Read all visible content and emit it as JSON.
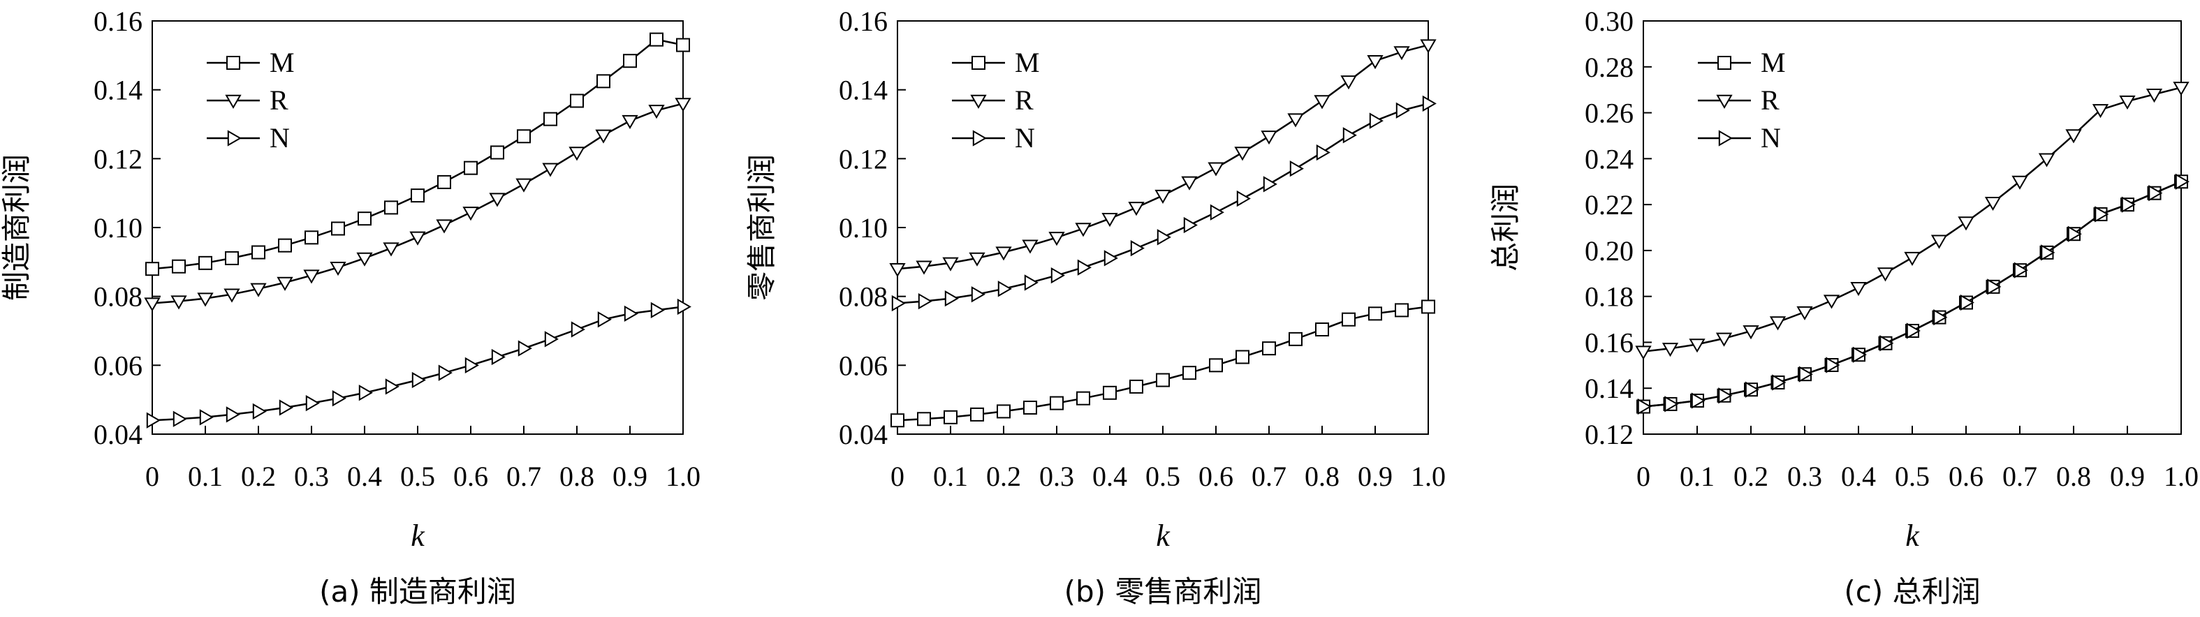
{
  "chart_data": [
    {
      "type": "line",
      "panel_caption": "(a) 制造商利润",
      "xlabel": "k",
      "ylabel": "制造商利润",
      "xlim": [
        0,
        1.0
      ],
      "ylim": [
        0.04,
        0.16
      ],
      "xticks": [
        "0",
        "0.1",
        "0.2",
        "0.3",
        "0.4",
        "0.5",
        "0.6",
        "0.7",
        "0.8",
        "0.9",
        "1.0"
      ],
      "yticks": [
        "0.04",
        "0.06",
        "0.08",
        "0.10",
        "0.12",
        "0.14",
        "0.16"
      ],
      "legend_position": "top-left",
      "x": [
        0,
        0.05,
        0.1,
        0.15,
        0.2,
        0.25,
        0.3,
        0.35,
        0.4,
        0.45,
        0.5,
        0.55,
        0.6,
        0.65,
        0.7,
        0.75,
        0.8,
        0.85,
        0.9,
        0.95,
        1.0
      ],
      "series": [
        {
          "name": "M",
          "marker": "square",
          "values": [
            0.088,
            0.0887,
            0.0897,
            0.0911,
            0.0928,
            0.0948,
            0.0971,
            0.0997,
            0.1026,
            0.1058,
            0.1093,
            0.1132,
            0.1173,
            0.1218,
            0.1265,
            0.1315,
            0.1368,
            0.1425,
            0.1484,
            0.1546,
            0.153
          ]
        },
        {
          "name": "R",
          "marker": "triangle-down",
          "values": [
            0.078,
            0.0786,
            0.0794,
            0.0806,
            0.0822,
            0.084,
            0.0861,
            0.0884,
            0.0911,
            0.094,
            0.0972,
            0.1007,
            0.1044,
            0.1084,
            0.1126,
            0.1171,
            0.1218,
            0.1268,
            0.131,
            0.134,
            0.136
          ]
        },
        {
          "name": "N",
          "marker": "triangle-right",
          "values": [
            0.044,
            0.0444,
            0.0449,
            0.0457,
            0.0466,
            0.0477,
            0.049,
            0.0504,
            0.052,
            0.0538,
            0.0557,
            0.0578,
            0.06,
            0.0624,
            0.0649,
            0.0676,
            0.0704,
            0.0733,
            0.075,
            0.076,
            0.077
          ]
        }
      ]
    },
    {
      "type": "line",
      "panel_caption": "(b) 零售商利润",
      "xlabel": "k",
      "ylabel": "零售商利润",
      "xlim": [
        0,
        1.0
      ],
      "ylim": [
        0.04,
        0.16
      ],
      "xticks": [
        "0",
        "0.1",
        "0.2",
        "0.3",
        "0.4",
        "0.5",
        "0.6",
        "0.7",
        "0.8",
        "0.9",
        "1.0"
      ],
      "yticks": [
        "0.04",
        "0.06",
        "0.08",
        "0.10",
        "0.12",
        "0.14",
        "0.16"
      ],
      "legend_position": "top-left",
      "x": [
        0,
        0.05,
        0.1,
        0.15,
        0.2,
        0.25,
        0.3,
        0.35,
        0.4,
        0.45,
        0.5,
        0.55,
        0.6,
        0.65,
        0.7,
        0.75,
        0.8,
        0.85,
        0.9,
        0.95,
        1.0
      ],
      "series": [
        {
          "name": "M",
          "marker": "square",
          "values": [
            0.044,
            0.0444,
            0.0449,
            0.0457,
            0.0466,
            0.0477,
            0.049,
            0.0504,
            0.052,
            0.0538,
            0.0557,
            0.0578,
            0.06,
            0.0624,
            0.0649,
            0.0676,
            0.0704,
            0.0733,
            0.075,
            0.076,
            0.077
          ]
        },
        {
          "name": "R",
          "marker": "triangle-down",
          "values": [
            0.088,
            0.0887,
            0.0897,
            0.0911,
            0.0928,
            0.0948,
            0.0971,
            0.0997,
            0.1026,
            0.1058,
            0.1093,
            0.1132,
            0.1173,
            0.1218,
            0.1265,
            0.1315,
            0.1368,
            0.1425,
            0.1484,
            0.151,
            0.153
          ]
        },
        {
          "name": "N",
          "marker": "triangle-right",
          "values": [
            0.078,
            0.0786,
            0.0794,
            0.0806,
            0.0822,
            0.084,
            0.0861,
            0.0884,
            0.0911,
            0.094,
            0.0972,
            0.1007,
            0.1044,
            0.1084,
            0.1126,
            0.1171,
            0.1218,
            0.1268,
            0.131,
            0.134,
            0.136
          ]
        }
      ]
    },
    {
      "type": "line",
      "panel_caption": "(c) 总利润",
      "xlabel": "k",
      "ylabel": "总利润",
      "xlim": [
        0,
        1.0
      ],
      "ylim": [
        0.12,
        0.3
      ],
      "xticks": [
        "0",
        "0.1",
        "0.2",
        "0.3",
        "0.4",
        "0.5",
        "0.6",
        "0.7",
        "0.8",
        "0.9",
        "1.0"
      ],
      "yticks": [
        "0.12",
        "0.14",
        "0.16",
        "0.18",
        "0.20",
        "0.22",
        "0.24",
        "0.26",
        "0.28",
        "0.30"
      ],
      "legend_position": "top-left",
      "x": [
        0,
        0.05,
        0.1,
        0.15,
        0.2,
        0.25,
        0.3,
        0.35,
        0.4,
        0.45,
        0.5,
        0.55,
        0.6,
        0.65,
        0.7,
        0.75,
        0.8,
        0.85,
        0.9,
        0.95,
        1.0
      ],
      "series": [
        {
          "name": "M",
          "marker": "square",
          "values": [
            0.132,
            0.1331,
            0.1346,
            0.1368,
            0.1394,
            0.1425,
            0.1461,
            0.1501,
            0.1546,
            0.1596,
            0.165,
            0.1709,
            0.1773,
            0.1842,
            0.1914,
            0.1991,
            0.2072,
            0.2158,
            0.22,
            0.225,
            0.23
          ]
        },
        {
          "name": "R",
          "marker": "triangle-down",
          "values": [
            0.156,
            0.1573,
            0.1591,
            0.1617,
            0.1649,
            0.1688,
            0.1732,
            0.1782,
            0.1838,
            0.1901,
            0.1969,
            0.2043,
            0.2123,
            0.2209,
            0.2301,
            0.2399,
            0.2503,
            0.2613,
            0.265,
            0.268,
            0.271
          ]
        },
        {
          "name": "N",
          "marker": "triangle-right",
          "values": [
            0.132,
            0.1331,
            0.1346,
            0.1368,
            0.1394,
            0.1425,
            0.1461,
            0.1501,
            0.1546,
            0.1596,
            0.165,
            0.1709,
            0.1773,
            0.1842,
            0.1914,
            0.1991,
            0.2072,
            0.2158,
            0.22,
            0.225,
            0.23
          ]
        }
      ]
    }
  ]
}
